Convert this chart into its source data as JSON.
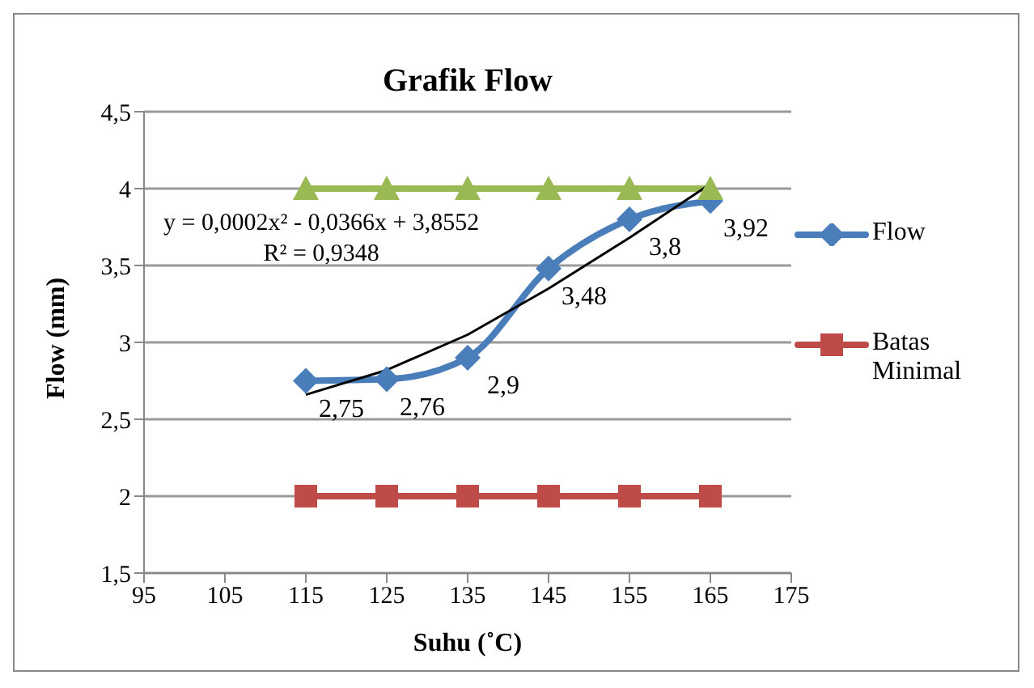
{
  "chart_data": {
    "type": "line",
    "title": "Grafik Flow",
    "xlabel": "Suhu (˚C)",
    "ylabel": "Flow (mm)",
    "x": [
      115,
      125,
      135,
      145,
      155,
      165
    ],
    "series": [
      {
        "name": "Flow",
        "color": "#4a7ebb",
        "values": [
          2.75,
          2.76,
          2.9,
          3.48,
          3.8,
          3.92
        ],
        "marker": "diamond",
        "value_labels": [
          "2,75",
          "2,76",
          "2,9",
          "3,48",
          "3,8",
          "3,92"
        ]
      },
      {
        "name": "Batas Minimal",
        "color": "#be4b48",
        "values": [
          2,
          2,
          2,
          2,
          2,
          2
        ],
        "marker": "square"
      },
      {
        "color": "#98b954",
        "values": [
          4,
          4,
          4,
          4,
          4,
          4
        ],
        "marker": "triangle"
      },
      {
        "color": "#000000",
        "type": "line",
        "marker": "none",
        "x": [
          115,
          125,
          135,
          145,
          155,
          165
        ],
        "values": [
          2.66,
          2.82,
          3.05,
          3.35,
          3.68,
          4.03
        ]
      }
    ],
    "xlim": [
      95,
      175
    ],
    "xticks": [
      95,
      105,
      115,
      125,
      135,
      145,
      155,
      165,
      175
    ],
    "ylim": [
      1.5,
      4.5
    ],
    "yticks": [
      {
        "value": 1.5,
        "label": "1,5"
      },
      2,
      {
        "value": 2.5,
        "label": "2,5"
      },
      3,
      {
        "value": 3.5,
        "label": "3,5"
      },
      4,
      {
        "value": 4.5,
        "label": "4,5"
      }
    ],
    "grid": "y",
    "legend": "right",
    "annotations": [
      "y = 0,0002x² - 0,0366x + 3,8552",
      "R² = 0,9348"
    ]
  }
}
